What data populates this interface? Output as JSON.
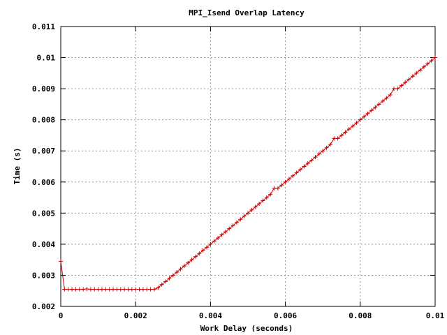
{
  "chart_data": {
    "type": "line",
    "title": "MPI_Isend Overlap Latency",
    "xlabel": "Work Delay (seconds)",
    "ylabel": "Time (s)",
    "xlim": [
      0,
      0.01
    ],
    "ylim": [
      0.002,
      0.011
    ],
    "x_ticks": [
      0,
      0.002,
      0.004,
      0.006,
      0.008,
      0.01
    ],
    "x_tick_labels": [
      "0",
      "0.002",
      "0.004",
      "0.006",
      "0.008",
      "0.01"
    ],
    "y_ticks": [
      0.002,
      0.003,
      0.004,
      0.005,
      0.006,
      0.007,
      0.008,
      0.009,
      0.01,
      0.011
    ],
    "y_tick_labels": [
      "0.002",
      "0.003",
      "0.004",
      "0.005",
      "0.006",
      "0.007",
      "0.008",
      "0.009",
      "0.01",
      "0.011"
    ],
    "grid": true,
    "legend": "none",
    "series": [
      {
        "color": "#cc0000",
        "marker": "plus",
        "x": [
          0,
          0.0001,
          0.0002,
          0.0003,
          0.0004,
          0.0005,
          0.0006,
          0.0007,
          0.0008,
          0.0009,
          0.001,
          0.0011,
          0.0012,
          0.0013,
          0.0014,
          0.0015,
          0.0016,
          0.0017,
          0.0018,
          0.0019,
          0.002,
          0.0021,
          0.0022,
          0.0023,
          0.0024,
          0.0025,
          0.0026,
          0.0027,
          0.0028,
          0.0029,
          0.003,
          0.0031,
          0.0032,
          0.0033,
          0.0034,
          0.0035,
          0.0036,
          0.0037,
          0.0038,
          0.0039,
          0.004,
          0.0041,
          0.0042,
          0.0043,
          0.0044,
          0.0045,
          0.0046,
          0.0047,
          0.0048,
          0.0049,
          0.005,
          0.0051,
          0.0052,
          0.0053,
          0.0054,
          0.0055,
          0.0056,
          0.0057,
          0.0058,
          0.0059,
          0.006,
          0.0061,
          0.0062,
          0.0063,
          0.0064,
          0.0065,
          0.0066,
          0.0067,
          0.0068,
          0.0069,
          0.007,
          0.0071,
          0.0072,
          0.0073,
          0.0074,
          0.0075,
          0.0076,
          0.0077,
          0.0078,
          0.0079,
          0.008,
          0.0081,
          0.0082,
          0.0083,
          0.0084,
          0.0085,
          0.0086,
          0.0087,
          0.0088,
          0.0089,
          0.009,
          0.0091,
          0.0092,
          0.0093,
          0.0094,
          0.0095,
          0.0096,
          0.0097,
          0.0098,
          0.0099,
          0.01
        ],
        "y": [
          0.00345,
          0.00255,
          0.00255,
          0.00255,
          0.00255,
          0.00255,
          0.00255,
          0.00256,
          0.00255,
          0.00255,
          0.00255,
          0.00255,
          0.00255,
          0.00255,
          0.00255,
          0.00255,
          0.00255,
          0.00255,
          0.00255,
          0.00255,
          0.00255,
          0.00255,
          0.00255,
          0.00255,
          0.00255,
          0.00255,
          0.0026,
          0.0027,
          0.0028,
          0.0029,
          0.003,
          0.0031,
          0.0032,
          0.0033,
          0.0034,
          0.0035,
          0.0036,
          0.0037,
          0.0038,
          0.0039,
          0.004,
          0.0041,
          0.0042,
          0.0043,
          0.0044,
          0.0045,
          0.0046,
          0.0047,
          0.0048,
          0.0049,
          0.005,
          0.0051,
          0.0052,
          0.0053,
          0.0054,
          0.0055,
          0.0056,
          0.0058,
          0.0058,
          0.0059,
          0.006,
          0.0061,
          0.0062,
          0.0063,
          0.0064,
          0.0065,
          0.0066,
          0.0067,
          0.0068,
          0.0069,
          0.007,
          0.0071,
          0.0072,
          0.0074,
          0.0074,
          0.0075,
          0.0076,
          0.0077,
          0.0078,
          0.0079,
          0.008,
          0.0081,
          0.0082,
          0.0083,
          0.0084,
          0.0085,
          0.0086,
          0.0087,
          0.0088,
          0.009,
          0.009,
          0.0091,
          0.0092,
          0.0093,
          0.0094,
          0.0095,
          0.0096,
          0.0097,
          0.0098,
          0.0099,
          0.01
        ]
      }
    ]
  }
}
